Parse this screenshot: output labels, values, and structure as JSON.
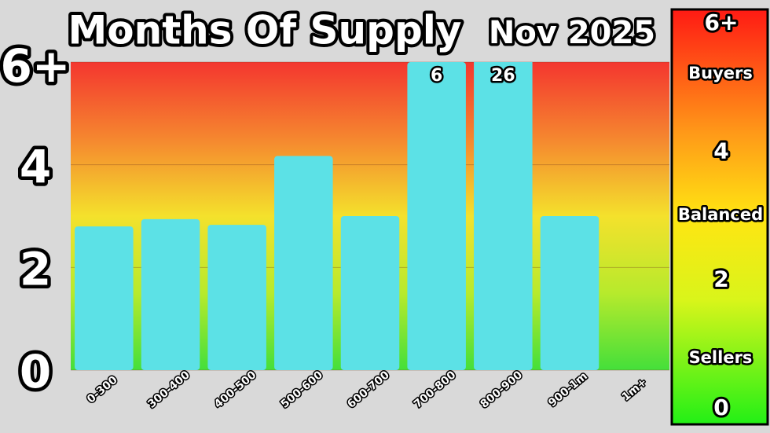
{
  "chart_data": {
    "type": "bar",
    "title": "Months Of Supply",
    "subtitle": "Nov 2025",
    "categories": [
      "0-300",
      "300-400",
      "400-500",
      "500-600",
      "600-700",
      "700-800",
      "800-900",
      "900-1m",
      "1m+"
    ],
    "values": [
      2.8,
      2.94,
      2.83,
      4.17,
      3.0,
      6,
      26,
      3.0,
      null
    ],
    "value_labels": [
      null,
      null,
      null,
      null,
      null,
      "6",
      "26",
      null,
      null
    ],
    "color": "#5ce1e6",
    "ylim": [
      0,
      6
    ],
    "yticks": [
      0,
      2,
      4,
      {
        "value": 6,
        "label": "6+"
      }
    ],
    "grid": true,
    "scale_labels": [
      "Buyers",
      "Balanced",
      "Sellers"
    ]
  }
}
